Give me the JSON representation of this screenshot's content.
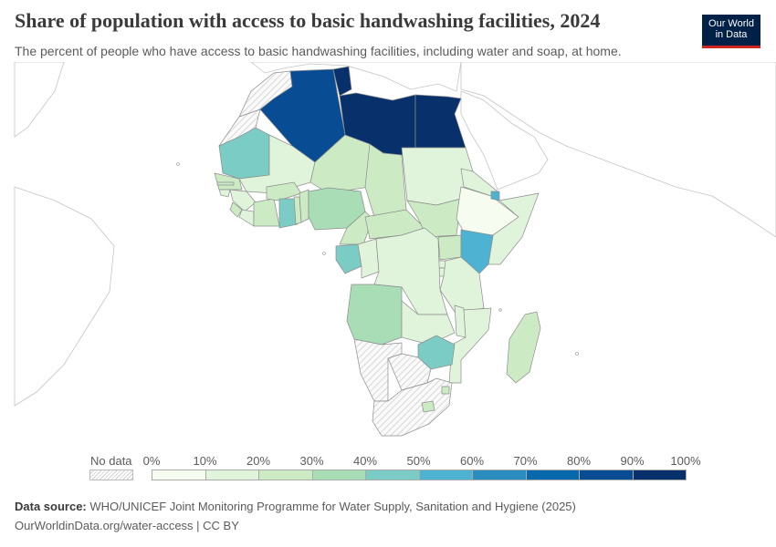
{
  "header": {
    "title": "Share of population with access to basic handwashing facilities, 2024",
    "subtitle": "The percent of people who have access to basic handwashing facilities, including water and soap, at home."
  },
  "logo": {
    "line1": "Our World",
    "line2": "in Data",
    "bg_color": "#002147",
    "accent_color": "#ce261e"
  },
  "legend": {
    "no_data_label": "No data",
    "ticks": [
      "0%",
      "10%",
      "20%",
      "30%",
      "40%",
      "50%",
      "60%",
      "70%",
      "80%",
      "90%",
      "100%"
    ],
    "bin_colors": [
      "#f7fcf0",
      "#e0f3db",
      "#ccebc5",
      "#a8ddb5",
      "#7bccc4",
      "#4eb3d3",
      "#2b8cbe",
      "#0868ac",
      "#084c94",
      "#08306b"
    ]
  },
  "footer": {
    "source_label": "Data source:",
    "source_text": "WHO/UNICEF Joint Monitoring Programme for Water Supply, Sanitation and Hygiene (2025)",
    "url": "OurWorldinData.org/water-access | CC BY"
  },
  "countries": [
    {
      "name": "Algeria",
      "bin": 8
    },
    {
      "name": "Tunisia",
      "bin": 9
    },
    {
      "name": "Libya",
      "bin": 9
    },
    {
      "name": "Egypt",
      "bin": 9
    },
    {
      "name": "Mauritania",
      "bin": 4
    },
    {
      "name": "Mali",
      "bin": 1
    },
    {
      "name": "Niger",
      "bin": 2
    },
    {
      "name": "Chad",
      "bin": 2
    },
    {
      "name": "Sudan",
      "bin": 1
    },
    {
      "name": "Senegal",
      "bin": 2
    },
    {
      "name": "Gambia",
      "bin": 2
    },
    {
      "name": "Guinea-Bissau",
      "bin": 1
    },
    {
      "name": "Guinea",
      "bin": 1
    },
    {
      "name": "Sierra Leone",
      "bin": 2
    },
    {
      "name": "Liberia",
      "bin": 1
    },
    {
      "name": "Cote d'Ivoire",
      "bin": 2
    },
    {
      "name": "Burkina Faso",
      "bin": 2
    },
    {
      "name": "Ghana",
      "bin": 4
    },
    {
      "name": "Togo",
      "bin": 2
    },
    {
      "name": "Benin",
      "bin": 2
    },
    {
      "name": "Nigeria",
      "bin": 3
    },
    {
      "name": "Cameroon",
      "bin": 2
    },
    {
      "name": "Central African Republic",
      "bin": 2
    },
    {
      "name": "South Sudan",
      "bin": 2
    },
    {
      "name": "Ethiopia",
      "bin": 0
    },
    {
      "name": "Djibouti",
      "bin": 5
    },
    {
      "name": "Somalia",
      "bin": 1
    },
    {
      "name": "Eritrea",
      "bin": 1
    },
    {
      "name": "Kenya",
      "bin": 5
    },
    {
      "name": "Uganda",
      "bin": 2
    },
    {
      "name": "Rwanda",
      "bin": 1
    },
    {
      "name": "Burundi",
      "bin": 1
    },
    {
      "name": "Tanzania",
      "bin": 1
    },
    {
      "name": "Gabon",
      "bin": 4
    },
    {
      "name": "Congo",
      "bin": 1
    },
    {
      "name": "Democratic Republic of Congo",
      "bin": 1
    },
    {
      "name": "Angola",
      "bin": 3
    },
    {
      "name": "Zambia",
      "bin": 1
    },
    {
      "name": "Malawi",
      "bin": 1
    },
    {
      "name": "Mozambique",
      "bin": 1
    },
    {
      "name": "Zimbabwe",
      "bin": 4
    },
    {
      "name": "Lesotho",
      "bin": 2
    },
    {
      "name": "Eswatini",
      "bin": 2
    },
    {
      "name": "Madagascar",
      "bin": 2
    },
    {
      "name": "Western Sahara",
      "bin": null
    },
    {
      "name": "Morocco",
      "bin": null
    },
    {
      "name": "Namibia",
      "bin": null
    },
    {
      "name": "Botswana",
      "bin": null
    },
    {
      "name": "South Africa",
      "bin": null
    }
  ]
}
